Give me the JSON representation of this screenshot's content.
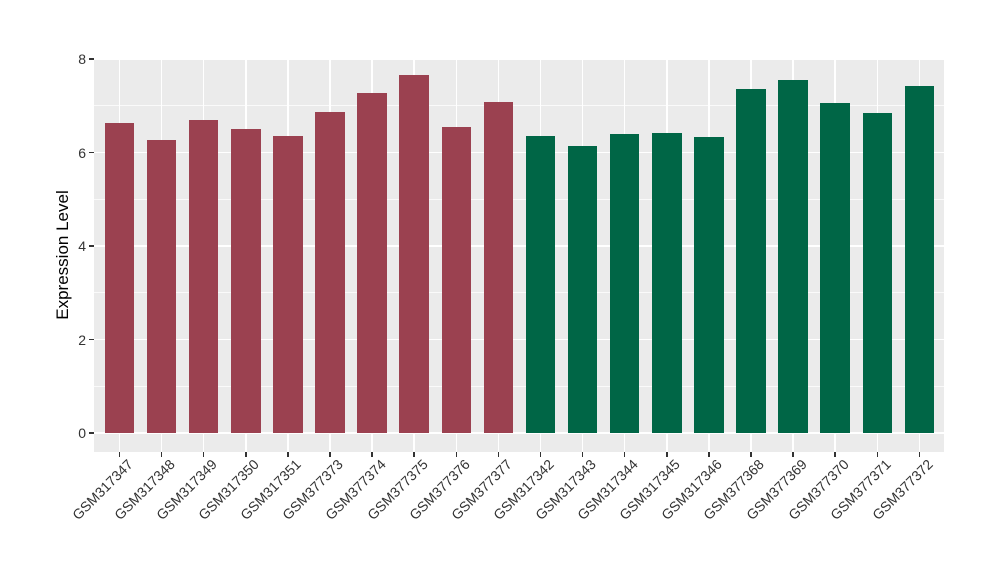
{
  "chart_data": {
    "type": "bar",
    "title": "",
    "xlabel": "",
    "ylabel": "Expression Level",
    "ylim": [
      0,
      8
    ],
    "yticks": [
      0,
      2,
      4,
      6,
      8
    ],
    "yticks_minor": [
      1,
      3,
      5,
      7
    ],
    "grid": true,
    "legend_position": "none",
    "panel_background": "#EBEBEB",
    "gridline_color": "#FFFFFF",
    "tick_text_color": "#333333",
    "group_colors": {
      "maroon": "#9B4150",
      "green": "#006646"
    },
    "bars": [
      {
        "label": "GSM317347",
        "value": 6.64,
        "group": "maroon"
      },
      {
        "label": "GSM317348",
        "value": 6.27,
        "group": "maroon"
      },
      {
        "label": "GSM317349",
        "value": 6.69,
        "group": "maroon"
      },
      {
        "label": "GSM317350",
        "value": 6.5,
        "group": "maroon"
      },
      {
        "label": "GSM317351",
        "value": 6.36,
        "group": "maroon"
      },
      {
        "label": "GSM377373",
        "value": 6.87,
        "group": "maroon"
      },
      {
        "label": "GSM377374",
        "value": 7.28,
        "group": "maroon"
      },
      {
        "label": "GSM377375",
        "value": 7.66,
        "group": "maroon"
      },
      {
        "label": "GSM377376",
        "value": 6.54,
        "group": "maroon"
      },
      {
        "label": "GSM377377",
        "value": 7.07,
        "group": "maroon"
      },
      {
        "label": "GSM317342",
        "value": 6.35,
        "group": "green"
      },
      {
        "label": "GSM317343",
        "value": 6.14,
        "group": "green"
      },
      {
        "label": "GSM317344",
        "value": 6.4,
        "group": "green"
      },
      {
        "label": "GSM317345",
        "value": 6.42,
        "group": "green"
      },
      {
        "label": "GSM317346",
        "value": 6.33,
        "group": "green"
      },
      {
        "label": "GSM377368",
        "value": 7.35,
        "group": "green"
      },
      {
        "label": "GSM377369",
        "value": 7.56,
        "group": "green"
      },
      {
        "label": "GSM377370",
        "value": 7.05,
        "group": "green"
      },
      {
        "label": "GSM377371",
        "value": 6.84,
        "group": "green"
      },
      {
        "label": "GSM377372",
        "value": 7.43,
        "group": "green"
      }
    ]
  }
}
